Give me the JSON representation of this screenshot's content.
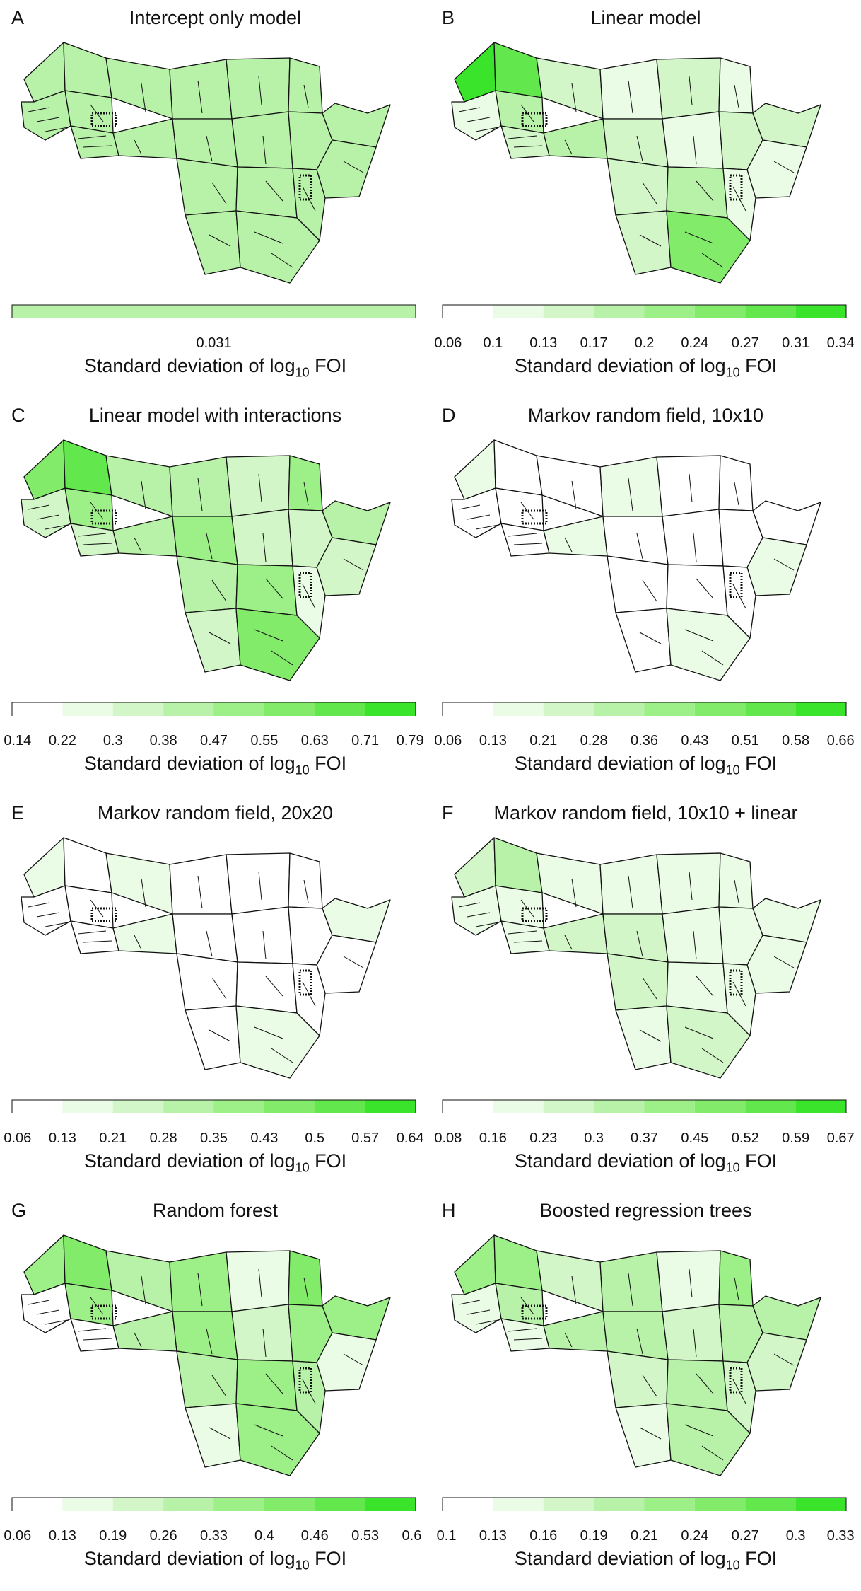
{
  "axis_label": {
    "main": "Standard deviation of log",
    "subscript": "10",
    "suffix": " FOI"
  },
  "palette": [
    "#ffffff",
    "#eafbe6",
    "#d2f6c8",
    "#b8f2a8",
    "#9def88",
    "#82ec6a",
    "#62e84c",
    "#3ae42a"
  ],
  "outline_color": "#111111",
  "panels": [
    {
      "letter": "A",
      "title": "Intercept only model",
      "single_value": true,
      "ticks": [
        "0.031"
      ],
      "region_levels": [
        3,
        3,
        3,
        3,
        3,
        3,
        3,
        3,
        3,
        3,
        3,
        3,
        3,
        3,
        3,
        3,
        3,
        3,
        3,
        3
      ]
    },
    {
      "letter": "B",
      "title": "Linear model",
      "ticks": [
        "0.06",
        "0.1",
        "0.13",
        "0.17",
        "0.2",
        "0.24",
        "0.27",
        "0.31",
        "0.34"
      ],
      "region_levels": [
        7,
        6,
        1,
        3,
        2,
        1,
        2,
        1,
        2,
        3,
        2,
        1,
        2,
        2,
        1,
        2,
        3,
        1,
        2,
        5
      ]
    },
    {
      "letter": "C",
      "title": "Linear model with interactions",
      "ticks": [
        "0.14",
        "0.22",
        "0.3",
        "0.38",
        "0.47",
        "0.55",
        "0.63",
        "0.71",
        "0.79"
      ],
      "region_levels": [
        5,
        6,
        2,
        4,
        3,
        3,
        2,
        4,
        2,
        3,
        4,
        2,
        2,
        3,
        2,
        3,
        4,
        1,
        2,
        5
      ]
    },
    {
      "letter": "D",
      "title": "Markov random field, 10x10",
      "ticks": [
        "0.06",
        "0.13",
        "0.21",
        "0.28",
        "0.36",
        "0.43",
        "0.51",
        "0.58",
        "0.66"
      ],
      "region_levels": [
        1,
        0,
        0,
        0,
        0,
        1,
        0,
        0,
        0,
        1,
        0,
        0,
        0,
        0,
        1,
        0,
        0,
        0,
        0,
        1
      ]
    },
    {
      "letter": "E",
      "title": "Markov random field, 20x20",
      "ticks": [
        "0.06",
        "0.13",
        "0.21",
        "0.28",
        "0.35",
        "0.43",
        "0.5",
        "0.57",
        "0.64"
      ],
      "region_levels": [
        1,
        0,
        0,
        0,
        1,
        0,
        0,
        0,
        0,
        1,
        0,
        0,
        0,
        1,
        0,
        0,
        0,
        0,
        0,
        1
      ]
    },
    {
      "letter": "F",
      "title": "Markov random field, 10x10 + linear",
      "ticks": [
        "0.08",
        "0.16",
        "0.23",
        "0.3",
        "0.37",
        "0.45",
        "0.52",
        "0.59",
        "0.67"
      ],
      "region_levels": [
        2,
        3,
        1,
        1,
        1,
        1,
        1,
        1,
        1,
        2,
        2,
        1,
        1,
        1,
        1,
        2,
        1,
        1,
        1,
        2
      ]
    },
    {
      "letter": "G",
      "title": "Random forest",
      "ticks": [
        "0.06",
        "0.13",
        "0.19",
        "0.26",
        "0.33",
        "0.4",
        "0.46",
        "0.53",
        "0.6"
      ],
      "region_levels": [
        4,
        5,
        0,
        4,
        3,
        4,
        1,
        5,
        0,
        3,
        4,
        2,
        4,
        4,
        1,
        3,
        4,
        3,
        1,
        4
      ]
    },
    {
      "letter": "H",
      "title": "Boosted regression trees",
      "ticks": [
        "0.1",
        "0.13",
        "0.16",
        "0.19",
        "0.21",
        "0.24",
        "0.27",
        "0.3",
        "0.33"
      ],
      "region_levels": [
        4,
        4,
        1,
        3,
        2,
        3,
        1,
        4,
        1,
        3,
        3,
        2,
        3,
        3,
        2,
        2,
        3,
        2,
        1,
        3
      ]
    }
  ]
}
